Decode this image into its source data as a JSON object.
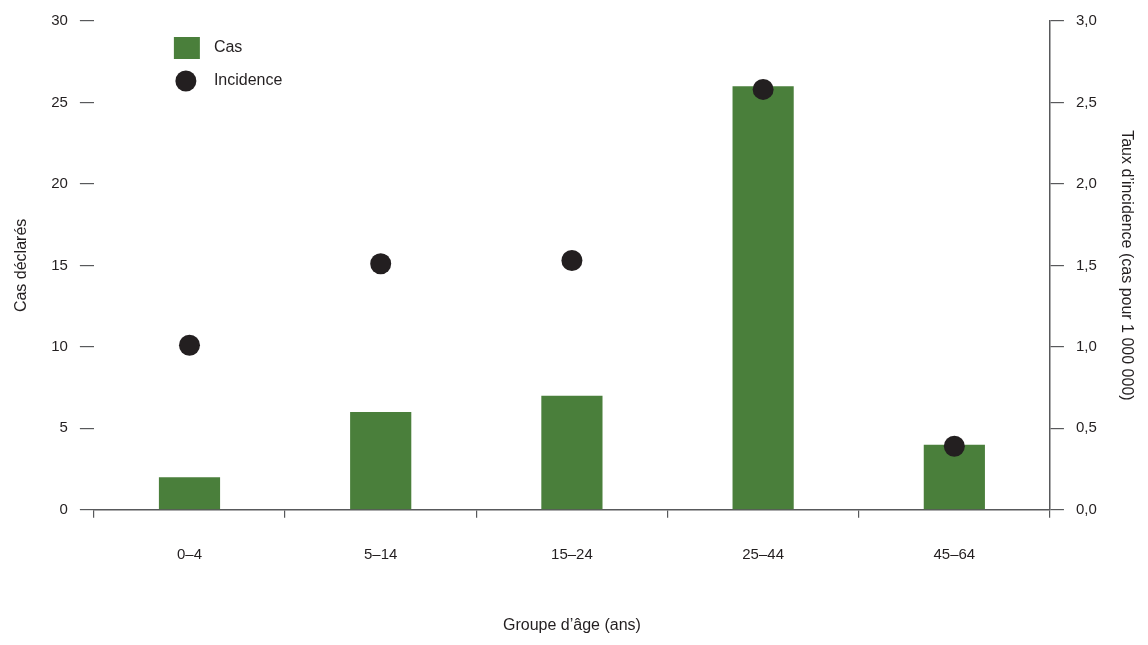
{
  "chart_data": {
    "type": "bar",
    "xlabel": "Groupe d’âge (ans)",
    "ylabel": "Cas déclarés",
    "y2label": "Taux d’incidence (cas pour 1 000 000)",
    "categories": [
      "0–4",
      "5–14",
      "15–24",
      "25–44",
      "45–64"
    ],
    "series": [
      {
        "name": "Cas",
        "color": "#4a7f3b",
        "values": [
          2,
          6,
          7,
          26,
          4
        ]
      },
      {
        "name": "Incidence",
        "type": "scatter",
        "axis": "y2",
        "color": "#231f20",
        "marker": "circle",
        "x": [
          "0–4",
          "5–14",
          "15–24",
          "25–44",
          "45–64"
        ],
        "values": [
          1.01,
          1.51,
          1.53,
          2.58,
          0.39
        ]
      }
    ],
    "ylim": [
      0,
      30
    ],
    "yticks": [
      0,
      5,
      10,
      15,
      20,
      25,
      30
    ],
    "y2lim": [
      0,
      3
    ],
    "y2ticks": [
      {
        "value": 0,
        "label": "0,0"
      },
      {
        "value": 0.5,
        "label": "0,5"
      },
      {
        "value": 1,
        "label": "1,0"
      },
      {
        "value": 1.5,
        "label": "1,5"
      },
      {
        "value": 2,
        "label": "2,0"
      },
      {
        "value": 2.5,
        "label": "2,5"
      },
      {
        "value": 3,
        "label": "3,0"
      }
    ],
    "legend": "top left"
  }
}
